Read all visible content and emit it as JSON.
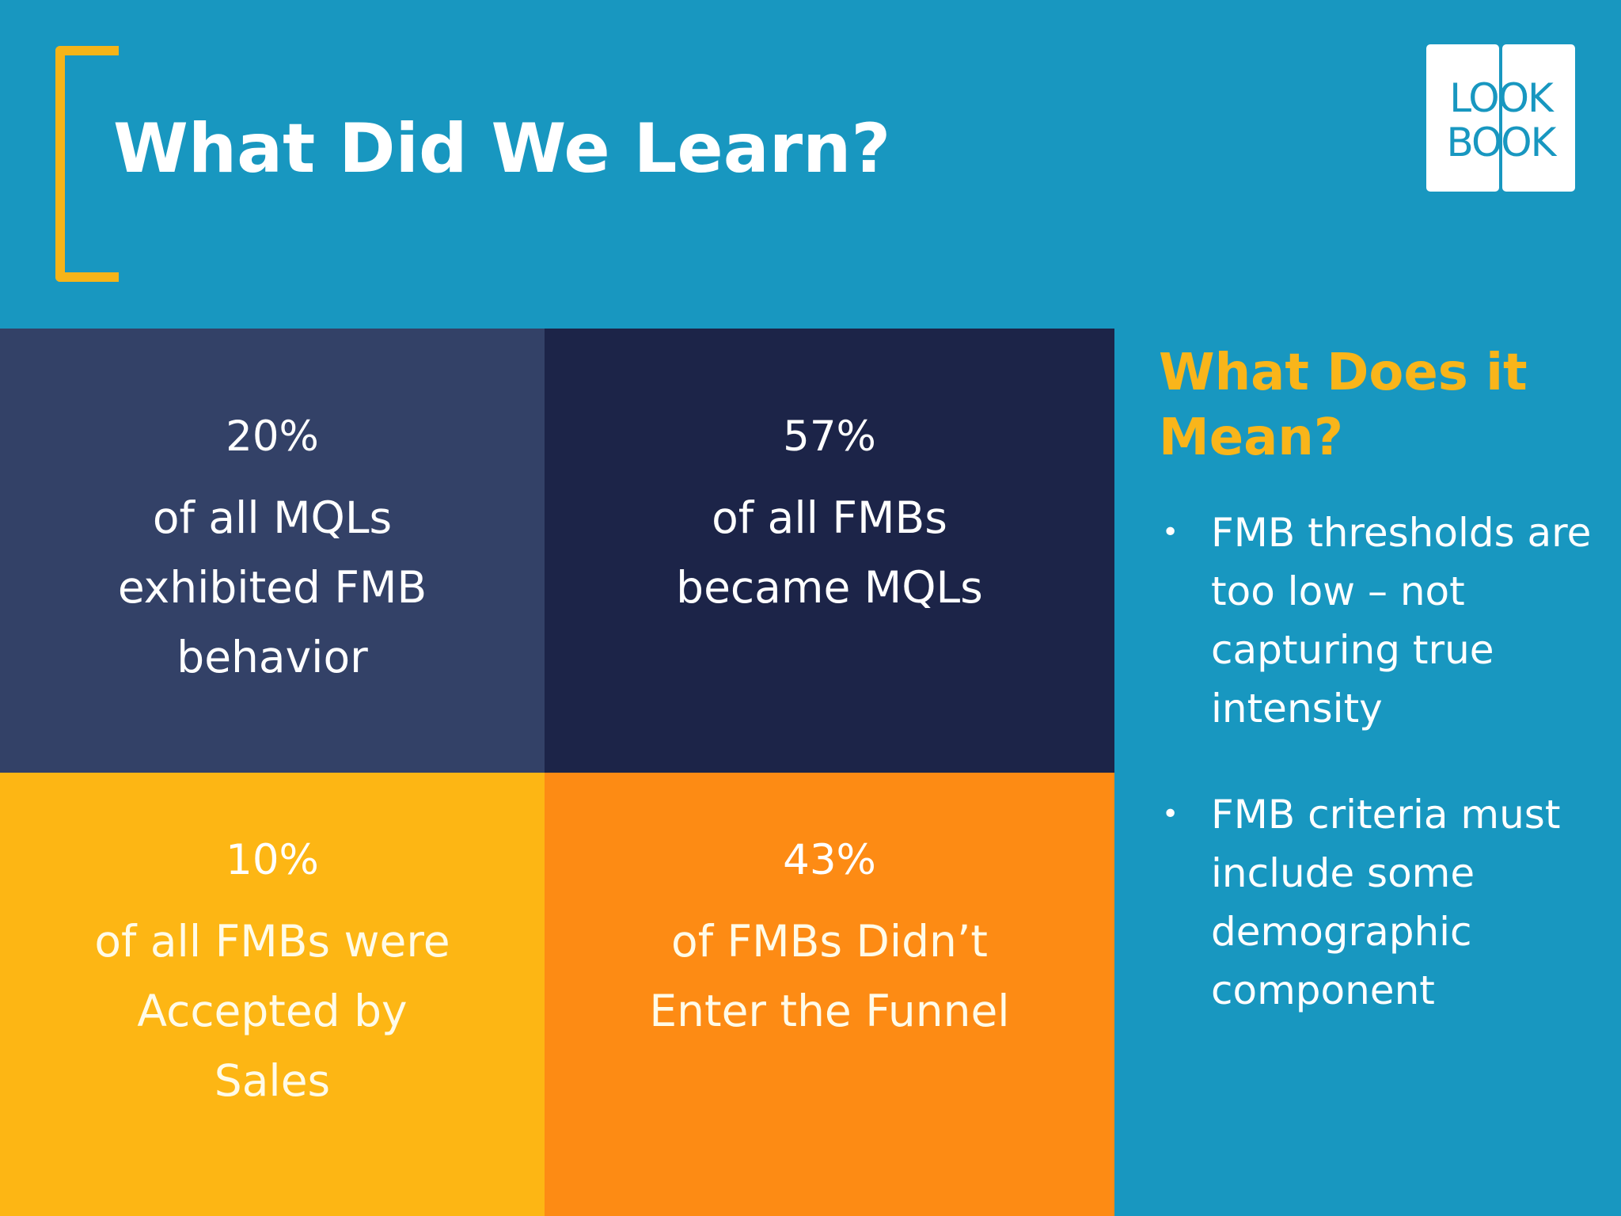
{
  "header": {
    "title": "What Did We Learn?",
    "accent_color": "#f5b418"
  },
  "logo": {
    "line1": "LOOK",
    "line2": "BOOK"
  },
  "stats": [
    {
      "value": "20%",
      "lines": [
        "of all MQLs",
        "exhibited FMB",
        "behavior"
      ],
      "color": "#334167"
    },
    {
      "value": "57%",
      "lines": [
        "of all FMBs",
        "became MQLs"
      ],
      "color": "#1c2448"
    },
    {
      "value": "10%",
      "lines": [
        "of all FMBs were",
        "Accepted by",
        "Sales"
      ],
      "color": "#fdb614"
    },
    {
      "value": "43%",
      "lines": [
        "of FMBs Didn’t",
        "Enter the Funnel"
      ],
      "color": "#fd8b14"
    }
  ],
  "sidebar": {
    "title_line1": "What Does it",
    "title_line2": "Mean?",
    "bullets": [
      {
        "lines": [
          "FMB thresholds are",
          "too low – not",
          "capturing true",
          "intensity"
        ]
      },
      {
        "lines": [
          "FMB criteria must",
          "include some",
          "demographic",
          "component"
        ]
      }
    ]
  },
  "colors": {
    "background": "#1897c0",
    "highlight": "#f9b51a"
  }
}
